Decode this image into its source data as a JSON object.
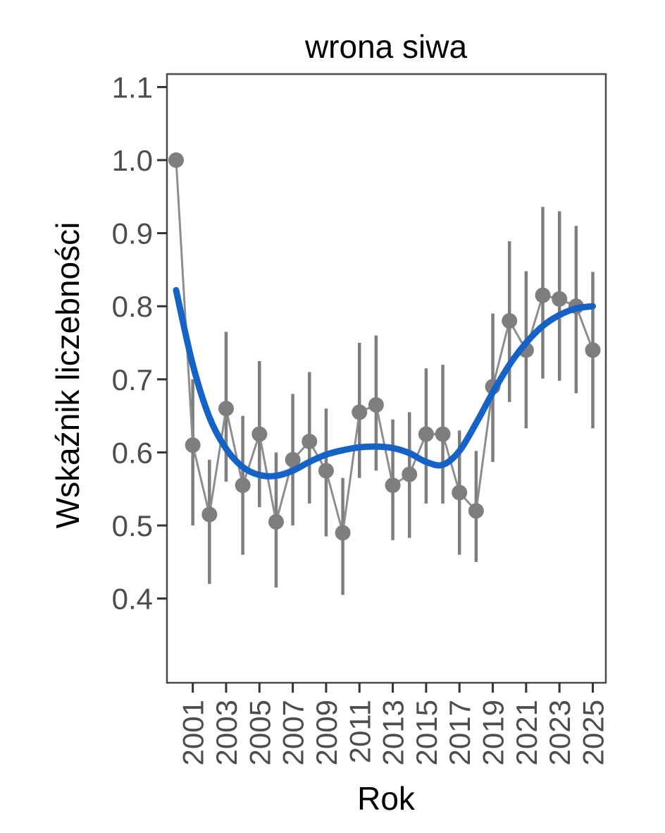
{
  "page": {
    "background": "#ffffff"
  },
  "chart_data": {
    "type": "scatter",
    "title": "wrona siwa",
    "xlabel": "Rok",
    "ylabel": "Wskaźnik liczebności",
    "legend": "none",
    "grid": "off",
    "x_tick_labels": [
      "2001",
      "2003",
      "2005",
      "2007",
      "2009",
      "2011",
      "2013",
      "2015",
      "2017",
      "2019",
      "2021",
      "2023",
      "2025"
    ],
    "y_tick_labels": [
      "1.1",
      "1.0",
      "0.9",
      "0.8",
      "0.7",
      "0.6",
      "0.5",
      "0.4"
    ],
    "y_tick_values": [
      1.1,
      1.0,
      0.9,
      0.8,
      0.7,
      0.6,
      0.5,
      0.4
    ],
    "xlim": [
      1999.45,
      2025.8
    ],
    "ylim": [
      0.285,
      1.135
    ],
    "points": [
      {
        "year": 2000,
        "value": 1.0,
        "lo": 1.0,
        "hi": 1.0
      },
      {
        "year": 2001,
        "value": 0.61,
        "lo": 0.5,
        "hi": 0.7
      },
      {
        "year": 2002,
        "value": 0.515,
        "lo": 0.42,
        "hi": 0.59
      },
      {
        "year": 2003,
        "value": 0.66,
        "lo": 0.56,
        "hi": 0.765
      },
      {
        "year": 2004,
        "value": 0.555,
        "lo": 0.46,
        "hi": 0.65
      },
      {
        "year": 2005,
        "value": 0.625,
        "lo": 0.525,
        "hi": 0.725
      },
      {
        "year": 2006,
        "value": 0.505,
        "lo": 0.415,
        "hi": 0.6
      },
      {
        "year": 2007,
        "value": 0.59,
        "lo": 0.5,
        "hi": 0.68
      },
      {
        "year": 2008,
        "value": 0.615,
        "lo": 0.53,
        "hi": 0.71
      },
      {
        "year": 2009,
        "value": 0.575,
        "lo": 0.485,
        "hi": 0.66
      },
      {
        "year": 2010,
        "value": 0.49,
        "lo": 0.405,
        "hi": 0.565
      },
      {
        "year": 2011,
        "value": 0.655,
        "lo": 0.565,
        "hi": 0.75
      },
      {
        "year": 2012,
        "value": 0.665,
        "lo": 0.575,
        "hi": 0.76
      },
      {
        "year": 2013,
        "value": 0.555,
        "lo": 0.48,
        "hi": 0.645
      },
      {
        "year": 2014,
        "value": 0.57,
        "lo": 0.483,
        "hi": 0.655
      },
      {
        "year": 2015,
        "value": 0.625,
        "lo": 0.53,
        "hi": 0.715
      },
      {
        "year": 2016,
        "value": 0.625,
        "lo": 0.53,
        "hi": 0.72
      },
      {
        "year": 2017,
        "value": 0.545,
        "lo": 0.46,
        "hi": 0.63
      },
      {
        "year": 2018,
        "value": 0.52,
        "lo": 0.45,
        "hi": 0.602
      },
      {
        "year": 2019,
        "value": 0.69,
        "lo": 0.587,
        "hi": 0.79
      },
      {
        "year": 2020,
        "value": 0.78,
        "lo": 0.669,
        "hi": 0.889
      },
      {
        "year": 2021,
        "value": 0.74,
        "lo": 0.633,
        "hi": 0.848
      },
      {
        "year": 2022,
        "value": 0.815,
        "lo": 0.701,
        "hi": 0.936
      },
      {
        "year": 2023,
        "value": 0.81,
        "lo": 0.698,
        "hi": 0.93
      },
      {
        "year": 2024,
        "value": 0.8,
        "lo": 0.681,
        "hi": 0.91
      },
      {
        "year": 2025,
        "value": 0.74,
        "lo": 0.633,
        "hi": 0.847
      }
    ],
    "trend": [
      {
        "year": 2000,
        "value": 0.822
      },
      {
        "year": 2001,
        "value": 0.72
      },
      {
        "year": 2002,
        "value": 0.648
      },
      {
        "year": 2003,
        "value": 0.605
      },
      {
        "year": 2004,
        "value": 0.58
      },
      {
        "year": 2005,
        "value": 0.569
      },
      {
        "year": 2006,
        "value": 0.568
      },
      {
        "year": 2007,
        "value": 0.575
      },
      {
        "year": 2008,
        "value": 0.587
      },
      {
        "year": 2009,
        "value": 0.597
      },
      {
        "year": 2010,
        "value": 0.603
      },
      {
        "year": 2011,
        "value": 0.607
      },
      {
        "year": 2012,
        "value": 0.608
      },
      {
        "year": 2013,
        "value": 0.606
      },
      {
        "year": 2014,
        "value": 0.599
      },
      {
        "year": 2015,
        "value": 0.587
      },
      {
        "year": 2016,
        "value": 0.583
      },
      {
        "year": 2017,
        "value": 0.602
      },
      {
        "year": 2018,
        "value": 0.64
      },
      {
        "year": 2019,
        "value": 0.682
      },
      {
        "year": 2020,
        "value": 0.72
      },
      {
        "year": 2021,
        "value": 0.75
      },
      {
        "year": 2022,
        "value": 0.773
      },
      {
        "year": 2023,
        "value": 0.788
      },
      {
        "year": 2024,
        "value": 0.797
      },
      {
        "year": 2025,
        "value": 0.8
      }
    ],
    "colors": {
      "point": "#7e7e7e",
      "error_bar": "#7e7e7e",
      "connecting_line": "#8d8d8d",
      "trend_line": "#1663c7",
      "panel_border": "#4a4a4a",
      "tick_mark": "#333333",
      "tick_label": "#4d4d4d",
      "title": "#000000"
    }
  }
}
